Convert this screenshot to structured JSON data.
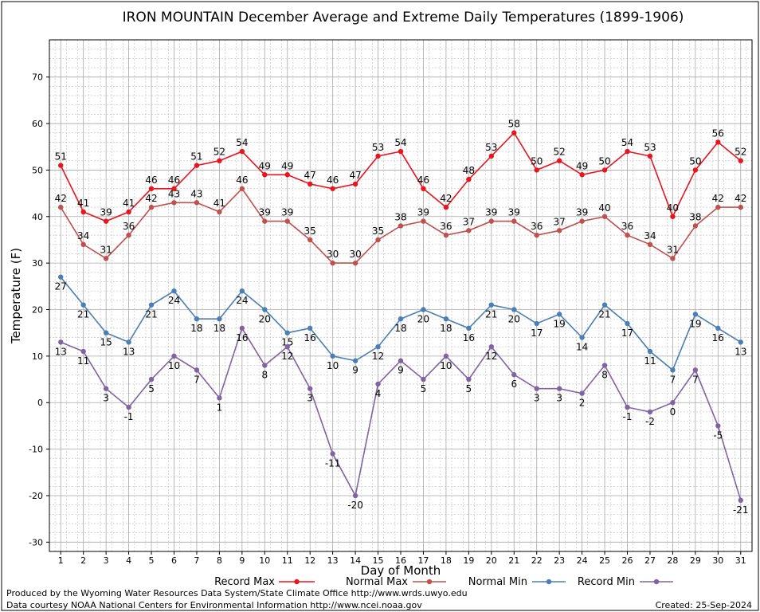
{
  "chart_data": {
    "type": "line",
    "title": "IRON MOUNTAIN December Average and Extreme Daily Temperatures (1899-1906)",
    "xlabel": "Day of Month",
    "ylabel": "Temperature (F)",
    "ylim": [
      -32,
      78
    ],
    "yticks": [
      -30,
      -20,
      -10,
      0,
      10,
      20,
      30,
      40,
      50,
      60,
      70
    ],
    "x": [
      1,
      2,
      3,
      4,
      5,
      6,
      7,
      8,
      9,
      10,
      11,
      12,
      13,
      14,
      15,
      16,
      17,
      18,
      19,
      20,
      21,
      22,
      23,
      24,
      25,
      26,
      27,
      28,
      29,
      30,
      31
    ],
    "grid": true,
    "legend_position": "bottom",
    "series": [
      {
        "name": "Record Max",
        "color": "#e8141e",
        "label_pos": "above",
        "values": [
          51,
          41,
          39,
          41,
          46,
          46,
          51,
          52,
          54,
          49,
          49,
          47,
          46,
          47,
          53,
          54,
          46,
          42,
          48,
          53,
          58,
          50,
          52,
          49,
          50,
          54,
          53,
          40,
          50,
          56,
          52
        ]
      },
      {
        "name": "Normal Max",
        "color": "#c0504d",
        "label_pos": "above",
        "values": [
          42,
          34,
          31,
          36,
          42,
          43,
          43,
          41,
          46,
          39,
          39,
          35,
          30,
          30,
          35,
          38,
          39,
          36,
          37,
          39,
          39,
          36,
          37,
          39,
          40,
          36,
          34,
          31,
          38,
          42,
          42
        ]
      },
      {
        "name": "Normal Min",
        "color": "#4a7eb5",
        "label_pos": "below",
        "values": [
          27,
          21,
          15,
          13,
          21,
          24,
          18,
          18,
          24,
          20,
          15,
          16,
          10,
          9,
          12,
          18,
          20,
          18,
          16,
          21,
          20,
          17,
          19,
          14,
          21,
          17,
          11,
          7,
          19,
          16,
          13
        ]
      },
      {
        "name": "Record Min",
        "color": "#8064a2",
        "label_pos": "below",
        "values": [
          13,
          11,
          3,
          -1,
          5,
          10,
          7,
          1,
          16,
          8,
          12,
          3,
          -11,
          -20,
          4,
          9,
          5,
          10,
          5,
          12,
          6,
          3,
          3,
          2,
          8,
          -1,
          -2,
          0,
          7,
          -5,
          -21
        ]
      }
    ]
  },
  "footer": {
    "produced_by": "Produced by the Wyoming Water Resources Data System/State Climate Office http://www.wrds.uwyo.edu",
    "courtesy": "Data courtesy NOAA National Centers for Environmental Information http://www.ncei.noaa.gov",
    "created": "Created: 25-Sep-2024"
  }
}
